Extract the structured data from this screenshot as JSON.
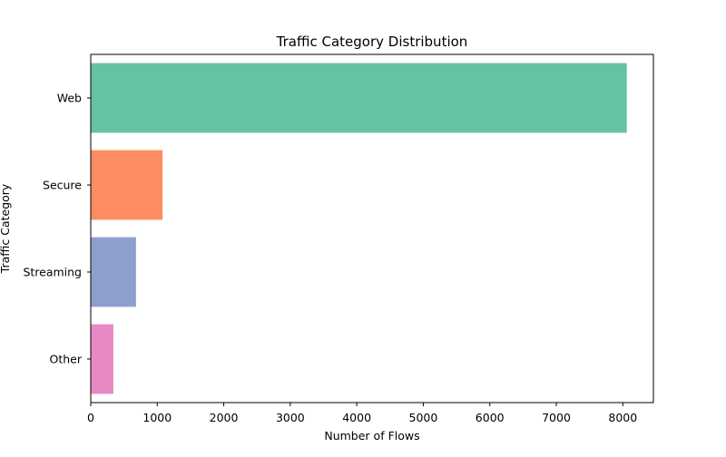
{
  "chart_data": {
    "type": "bar",
    "orientation": "horizontal",
    "title": "Traffic Category Distribution",
    "xlabel": "Number of Flows",
    "ylabel": "Traffic Category",
    "categories": [
      "Web",
      "Secure",
      "Streaming",
      "Other"
    ],
    "values": [
      8060,
      1080,
      680,
      340
    ],
    "colors": [
      "#66c2a5",
      "#fc8d62",
      "#8da0cb",
      "#e78ac3"
    ],
    "xlim": [
      0,
      8460
    ],
    "xticks": [
      0,
      1000,
      2000,
      3000,
      4000,
      5000,
      6000,
      7000,
      8000
    ],
    "grid": false,
    "legend": "none"
  }
}
